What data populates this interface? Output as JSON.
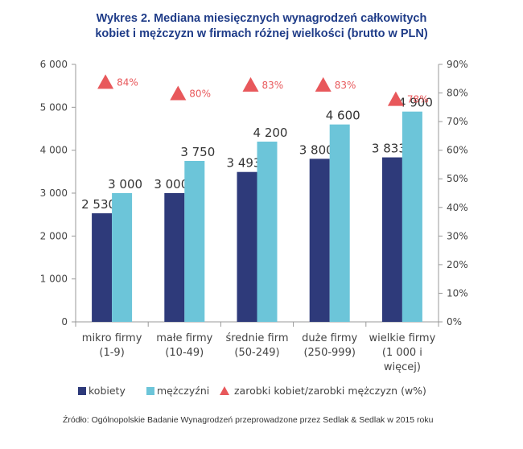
{
  "chart_data": {
    "type": "bar",
    "title_lines": [
      "Wykres 2. Mediana miesięcznych wynagrodzeń całkowitych",
      "kobiet i mężczyzn w firmach różnej wielkości (brutto w PLN)"
    ],
    "categories": [
      [
        "mikro firmy",
        "(1-9)"
      ],
      [
        "małe firmy",
        "(10-49)"
      ],
      [
        "średnie firm",
        "(50-249)"
      ],
      [
        "duże firmy",
        "(250-999)"
      ],
      [
        "wielkie firmy",
        "(1 000 i",
        "więcej)"
      ]
    ],
    "series": [
      {
        "name": "kobiety",
        "color": "#2e3a7a",
        "values": [
          2530,
          3000,
          3493,
          3800,
          3833
        ],
        "labels": [
          "2 530",
          "3 000",
          "3 493",
          "3 800",
          "3 833"
        ]
      },
      {
        "name": "mężczyźni",
        "color": "#6cc5d9",
        "values": [
          3000,
          3750,
          4200,
          4600,
          4900
        ],
        "labels": [
          "3 000",
          "3 750",
          "4 200",
          "4 600",
          "4 900"
        ]
      }
    ],
    "ratio_series": {
      "name": "zarobki kobiet/zarobki mężczyzn (w%)",
      "color": "#e8585b",
      "values": [
        84,
        80,
        83,
        83,
        78
      ],
      "labels": [
        "84%",
        "80%",
        "83%",
        "83%",
        "78%"
      ]
    },
    "y_left": {
      "min": 0,
      "max": 6000,
      "ticks": [
        0,
        1000,
        2000,
        3000,
        4000,
        5000,
        6000
      ],
      "tick_labels": [
        "0",
        "1 000",
        "2 000",
        "3 000",
        "4 000",
        "5 000",
        "6 000"
      ]
    },
    "y_right": {
      "min": 0,
      "max": 90,
      "ticks": [
        0,
        10,
        20,
        30,
        40,
        50,
        60,
        70,
        80,
        90
      ],
      "tick_labels": [
        "0%",
        "10%",
        "20%",
        "30%",
        "40%",
        "50%",
        "60%",
        "70%",
        "80%",
        "90%"
      ]
    },
    "grid": false,
    "legend_position": "bottom"
  },
  "legend": [
    "kobiety",
    "mężczyźni",
    "zarobki kobiet/zarobki mężczyzn (w%)"
  ],
  "source": "Źródło: Ogólnopolskie Badanie Wynagrodzeń przeprowadzone przez Sedlak & Sedlak w 2015 roku"
}
